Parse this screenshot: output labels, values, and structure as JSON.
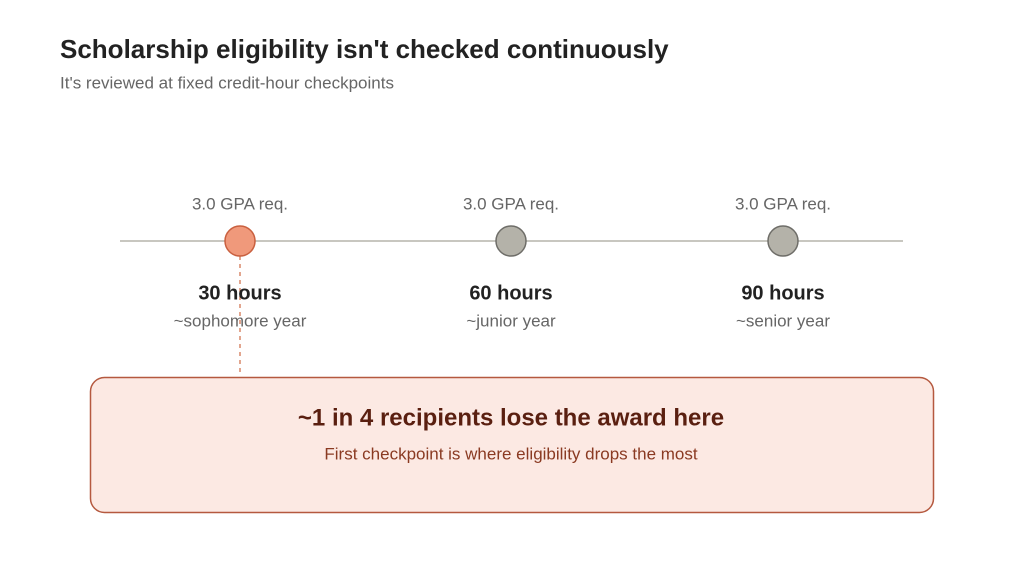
{
  "title": "Scholarship eligibility isn't checked continuously",
  "subtitle": "It's reviewed at fixed credit-hour checkpoints",
  "checkpoints": [
    {
      "requirement": "3.0 GPA req.",
      "label": "30 hours",
      "sublabel": "~sophomore year"
    },
    {
      "requirement": "3.0 GPA req.",
      "label": "60 hours",
      "sublabel": "~junior year"
    },
    {
      "requirement": "3.0 GPA req.",
      "label": "90 hours",
      "sublabel": "~senior year"
    }
  ],
  "callout": {
    "headline": "~1 in 4 recipients lose the award here",
    "text": "First checkpoint is where eligibility drops the most"
  }
}
